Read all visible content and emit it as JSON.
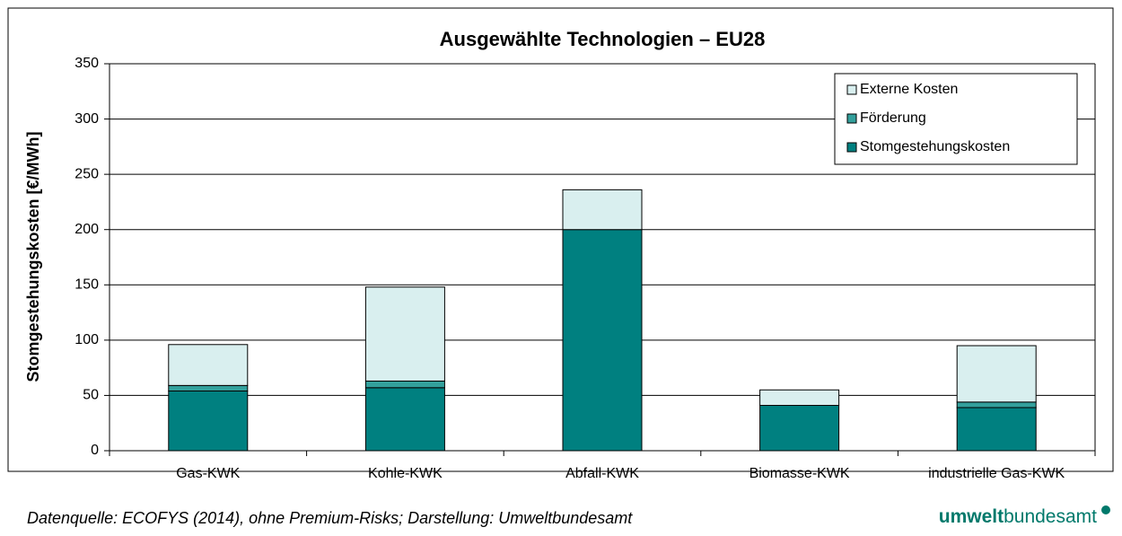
{
  "chart_data": {
    "type": "stacked_bar",
    "title": "Ausgewählte Technologien – EU28",
    "y_label": "Stomgestehungskosten [€/MWh]",
    "categories": [
      "Gas-KWK",
      "Kohle-KWK",
      "Abfall-KWK",
      "Biomasse-KWK",
      "industrielle Gas-KWK"
    ],
    "series": [
      {
        "name": "Stomgestehungskosten",
        "color": "#008080",
        "values": [
          54,
          57,
          200,
          41,
          39
        ]
      },
      {
        "name": "Förderung",
        "color": "#33a09c",
        "values": [
          5,
          6,
          0,
          0,
          5
        ]
      },
      {
        "name": "Externe Kosten",
        "color": "#d9efef",
        "values": [
          37,
          85,
          36,
          14,
          51
        ]
      }
    ],
    "ylim": [
      0,
      350
    ],
    "yticks": [
      0,
      50,
      100,
      150,
      200,
      250,
      300,
      350
    ],
    "grid": true,
    "legend": "top-right"
  },
  "footer": {
    "source": "Datenquelle: ECOFYS (2014), ohne Premium-Risks; Darstellung: Umweltbundesamt",
    "logo_bold": "umwelt",
    "logo_rest": "bundesamt"
  }
}
